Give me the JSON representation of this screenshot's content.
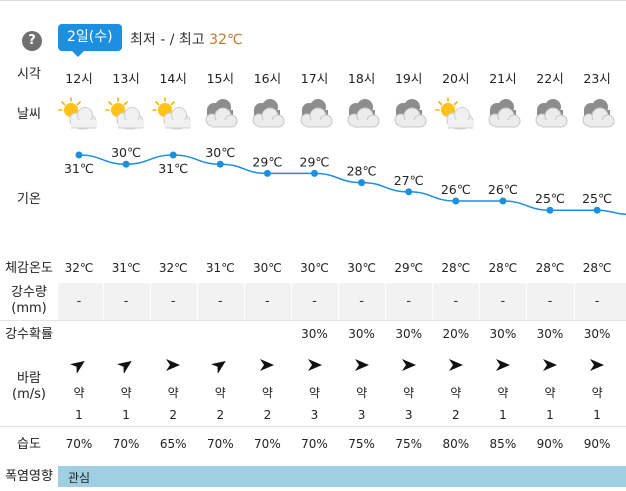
{
  "header": {
    "help_label": "?",
    "date_label": "2일(수)",
    "min_prefix": "최저",
    "min_value": "-",
    "separator": "/",
    "max_prefix": "최고",
    "max_value": "32℃"
  },
  "labels": {
    "time": "시각",
    "weather": "날씨",
    "temperature": "기온",
    "feels_like": "체감온도",
    "rain_amount_1": "강수량",
    "rain_amount_2": "(mm)",
    "rain_prob": "강수확률",
    "wind_1": "바람",
    "wind_2": "(m/s)",
    "humidity": "습도",
    "heat_impact": "폭염영향"
  },
  "hours": [
    {
      "time": "12시",
      "icon": "partly-sunny-icon",
      "temp": "31℃",
      "temp_value": 31,
      "feels": "32℃",
      "rain": "-",
      "prob": "",
      "wind_dir": "northeast-arrow-icon",
      "wind_str": "약",
      "wind_spd": "1",
      "humidity": "70%"
    },
    {
      "time": "13시",
      "icon": "partly-sunny-icon",
      "temp": "30℃",
      "temp_value": 30,
      "feels": "31℃",
      "rain": "-",
      "prob": "",
      "wind_dir": "northeast-arrow-icon",
      "wind_str": "약",
      "wind_spd": "1",
      "humidity": "70%"
    },
    {
      "time": "14시",
      "icon": "partly-sunny-icon",
      "temp": "31℃",
      "temp_value": 31,
      "feels": "32℃",
      "rain": "-",
      "prob": "",
      "wind_dir": "east-arrow-icon",
      "wind_str": "약",
      "wind_spd": "2",
      "humidity": "65%"
    },
    {
      "time": "15시",
      "icon": "cloudy-icon",
      "temp": "30℃",
      "temp_value": 30,
      "feels": "31℃",
      "rain": "-",
      "prob": "",
      "wind_dir": "northeast-arrow-icon",
      "wind_str": "약",
      "wind_spd": "2",
      "humidity": "70%"
    },
    {
      "time": "16시",
      "icon": "cloudy-icon",
      "temp": "29℃",
      "temp_value": 29,
      "feels": "30℃",
      "rain": "-",
      "prob": "",
      "wind_dir": "east-arrow-icon",
      "wind_str": "약",
      "wind_spd": "2",
      "humidity": "70%"
    },
    {
      "time": "17시",
      "icon": "cloudy-icon",
      "temp": "29℃",
      "temp_value": 29,
      "feels": "30℃",
      "rain": "-",
      "prob": "30%",
      "wind_dir": "east-arrow-icon",
      "wind_str": "약",
      "wind_spd": "3",
      "humidity": "70%"
    },
    {
      "time": "18시",
      "icon": "cloudy-icon",
      "temp": "28℃",
      "temp_value": 28,
      "feels": "30℃",
      "rain": "-",
      "prob": "30%",
      "wind_dir": "east-arrow-icon",
      "wind_str": "약",
      "wind_spd": "3",
      "humidity": "75%"
    },
    {
      "time": "19시",
      "icon": "cloudy-icon",
      "temp": "27℃",
      "temp_value": 27,
      "feels": "29℃",
      "rain": "-",
      "prob": "30%",
      "wind_dir": "east-arrow-icon",
      "wind_str": "약",
      "wind_spd": "3",
      "humidity": "75%"
    },
    {
      "time": "20시",
      "icon": "partly-sunny-icon",
      "temp": "26℃",
      "temp_value": 26,
      "feels": "28℃",
      "rain": "-",
      "prob": "20%",
      "wind_dir": "east-arrow-icon",
      "wind_str": "약",
      "wind_spd": "2",
      "humidity": "80%"
    },
    {
      "time": "21시",
      "icon": "cloudy-icon",
      "temp": "26℃",
      "temp_value": 26,
      "feels": "28℃",
      "rain": "-",
      "prob": "30%",
      "wind_dir": "east-arrow-icon",
      "wind_str": "약",
      "wind_spd": "1",
      "humidity": "85%"
    },
    {
      "time": "22시",
      "icon": "cloudy-icon",
      "temp": "25℃",
      "temp_value": 25,
      "feels": "28℃",
      "rain": "-",
      "prob": "30%",
      "wind_dir": "east-arrow-icon",
      "wind_str": "약",
      "wind_spd": "1",
      "humidity": "90%"
    },
    {
      "time": "23시",
      "icon": "cloudy-icon",
      "temp": "25℃",
      "temp_value": 25,
      "feels": "28℃",
      "rain": "-",
      "prob": "30%",
      "wind_dir": "east-arrow-icon",
      "wind_str": "약",
      "wind_spd": "1",
      "humidity": "90%"
    }
  ],
  "heat": {
    "level": "관심",
    "color": "#9fcfe0"
  },
  "colors": {
    "accent": "#1d8fe0",
    "temp_line": "#1d8fe0",
    "max_temp": "#c47a2c"
  }
}
